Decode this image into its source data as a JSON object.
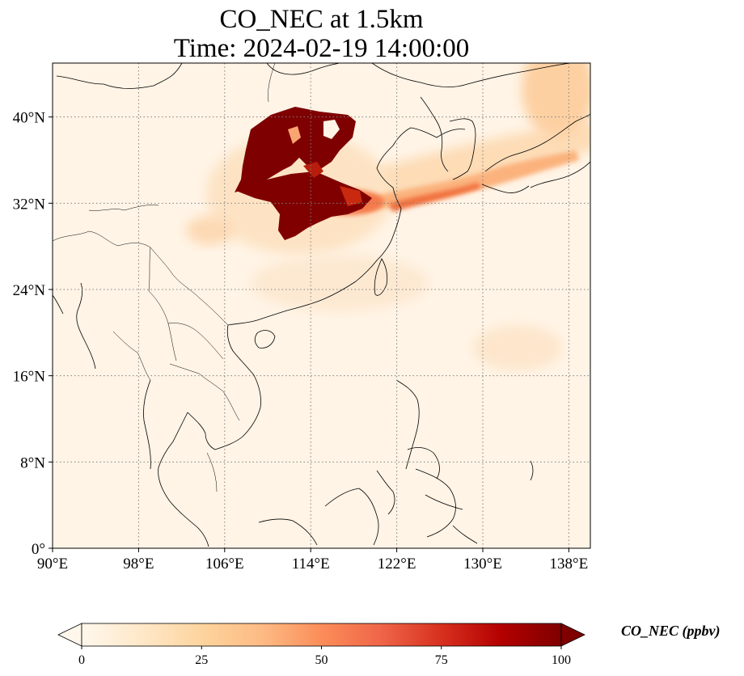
{
  "title": {
    "line1": "CO_NEC at 1.5km",
    "line2": "Time: 2024-02-19 14:00:00"
  },
  "map": {
    "projection": "PlateCarree",
    "lon_range": [
      90,
      140
    ],
    "lat_range": [
      0,
      45
    ],
    "x_ticks": [
      90,
      98,
      106,
      114,
      122,
      130,
      138
    ],
    "x_tick_labels": [
      "90°E",
      "98°E",
      "106°E",
      "114°E",
      "122°E",
      "130°E",
      "138°E"
    ],
    "y_ticks": [
      0,
      8,
      16,
      24,
      32,
      40
    ],
    "y_tick_labels": [
      "0°",
      "8°N",
      "16°N",
      "24°N",
      "32°N",
      "40°N"
    ],
    "gridlines": "dotted",
    "colormap": "OrRd",
    "colors": {
      "low": "#fff7ec",
      "mid_low": "#fdd49e",
      "mid": "#fc8d59",
      "mid_high": "#d7301f",
      "high": "#7f0000",
      "coast": "#000000",
      "grid": "#808080"
    }
  },
  "colorbar": {
    "min": 0,
    "max": 100,
    "extend": "both",
    "ticks": [
      0,
      25,
      50,
      75,
      100
    ],
    "tick_labels": [
      "0",
      "25",
      "50",
      "75",
      "100"
    ],
    "label": "CO_NEC (ppbv)"
  }
}
